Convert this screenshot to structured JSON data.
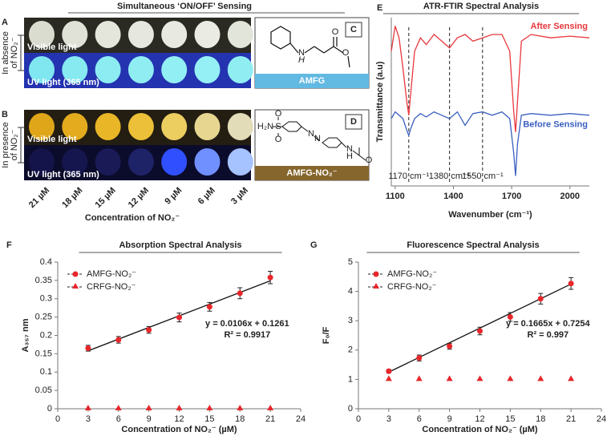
{
  "photo_figure": {
    "title": "Simultaneous ‘ON/OFF’ Sensing",
    "panels": [
      {
        "letter": "A",
        "side_label": [
          "In absence",
          "of NO₂⁻"
        ],
        "rows": [
          "Visible light",
          "UV light (365 nm)"
        ]
      },
      {
        "letter": "B",
        "side_label": [
          "In presence",
          "of NO₂⁻"
        ],
        "rows": [
          "Visible light",
          "UV light (365 nm)"
        ]
      }
    ],
    "structures": [
      {
        "letter": "C",
        "name": "AMFG",
        "atoms": [
          "N",
          "H",
          "O",
          "O"
        ]
      },
      {
        "letter": "D",
        "name": "AMFG-NO₂⁻",
        "atoms": [
          "H₂N",
          "S",
          "O",
          "O",
          "N",
          "N",
          "N",
          "H",
          "O"
        ]
      }
    ],
    "concentrations": [
      "21 µM",
      "18 µM",
      "15 µM",
      "12 µM",
      "9 µM",
      "6 µM",
      "3 µM"
    ],
    "xlabel": "Concentration of NO₂⁻"
  },
  "chart_data": [
    {
      "type": "line",
      "panel": "E",
      "title": "ATR-FTIR Spectral Analysis",
      "xlabel": "Wavenumber (cm⁻¹)",
      "ylabel": "Transmittance (a.u)",
      "x": [
        1080,
        1100,
        1120,
        1140,
        1160,
        1170,
        1180,
        1200,
        1230,
        1260,
        1300,
        1340,
        1380,
        1420,
        1460,
        1500,
        1550,
        1600,
        1650,
        1690,
        1710,
        1720,
        1730,
        1750,
        1800,
        1900,
        2000,
        2100
      ],
      "series": [
        {
          "name": "After Sensing",
          "color": "#e8383d",
          "values": [
            80,
            95,
            88,
            70,
            50,
            42,
            55,
            80,
            88,
            84,
            90,
            86,
            82,
            88,
            90,
            86,
            88,
            90,
            90,
            80,
            45,
            32,
            50,
            86,
            90,
            88,
            89,
            88
          ]
        },
        {
          "name": "Before Sensing",
          "color": "#3a5fc0",
          "values": [
            40,
            44,
            42,
            40,
            33,
            30,
            34,
            40,
            43,
            41,
            44,
            42,
            40,
            44,
            36,
            43,
            44,
            42,
            44,
            40,
            20,
            6,
            25,
            42,
            43,
            42,
            43,
            42
          ]
        }
      ],
      "xlim": [
        1080,
        2100
      ],
      "xticks": [
        1100,
        1400,
        1700,
        2000
      ],
      "ylim": [
        0,
        100
      ],
      "reference_lines": [
        {
          "value": 1170,
          "label": "1170 cm⁻¹"
        },
        {
          "value": 1380,
          "label": "1380 cm⁻¹"
        },
        {
          "value": 1550,
          "label": "1550 cm⁻¹"
        }
      ]
    },
    {
      "type": "scatter",
      "panel": "F",
      "title": "Absorption Spectral Analysis",
      "xlabel": "Concentration of NO₂⁻ (µM)",
      "ylabel": "A₃₅₇ nm",
      "x": [
        3,
        6,
        9,
        12,
        15,
        18,
        21
      ],
      "series": [
        {
          "name": "AMFG-NO₂⁻",
          "color": "#e8262b",
          "marker": "circle",
          "values": [
            0.165,
            0.188,
            0.215,
            0.249,
            0.278,
            0.315,
            0.358
          ],
          "errors": [
            0.008,
            0.009,
            0.009,
            0.012,
            0.012,
            0.015,
            0.017
          ]
        },
        {
          "name": "CRFG-NO₂⁻",
          "color": "#e8262b",
          "marker": "triangle",
          "values": [
            0,
            0,
            0,
            0,
            0,
            0,
            0
          ]
        }
      ],
      "trendline": {
        "x": [
          3,
          21
        ],
        "values": [
          0.158,
          0.349
        ]
      },
      "annotations": [
        "y = 0.0106x + 0.1261",
        "R² = 0.9917"
      ],
      "xlim": [
        0,
        24
      ],
      "xticks": [
        0,
        3,
        6,
        9,
        12,
        15,
        18,
        21,
        24
      ],
      "ylim": [
        0,
        0.4
      ],
      "yticks": [
        0,
        0.05,
        0.1,
        0.15,
        0.2,
        0.25,
        0.3,
        0.35,
        0.4
      ]
    },
    {
      "type": "scatter",
      "panel": "G",
      "title": "Fluorescence Spectral Analysis",
      "xlabel": "Concentration of NO₂⁻ (µM)",
      "ylabel": "F₀/F",
      "x": [
        3,
        6,
        9,
        12,
        15,
        18,
        21
      ],
      "series": [
        {
          "name": "AMFG-NO₂⁻",
          "color": "#e8262b",
          "marker": "circle",
          "values": [
            1.28,
            1.73,
            2.13,
            2.65,
            3.13,
            3.75,
            4.27
          ],
          "errors": [
            0.06,
            0.1,
            0.1,
            0.13,
            0.15,
            0.18,
            0.2
          ]
        },
        {
          "name": "CRFG-NO₂⁻",
          "color": "#e8262b",
          "marker": "triangle",
          "values": [
            1,
            1,
            1,
            1,
            1,
            1,
            1
          ]
        }
      ],
      "trendline": {
        "x": [
          3,
          21
        ],
        "values": [
          1.25,
          4.25
        ]
      },
      "annotations": [
        "y = 0.1665x + 0.7254",
        "R² = 0.997"
      ],
      "xlim": [
        0,
        24
      ],
      "xticks": [
        0,
        3,
        6,
        9,
        12,
        15,
        18,
        21,
        24
      ],
      "ylim": [
        0,
        5
      ],
      "yticks": [
        0,
        1,
        2,
        3,
        4,
        5
      ]
    }
  ]
}
